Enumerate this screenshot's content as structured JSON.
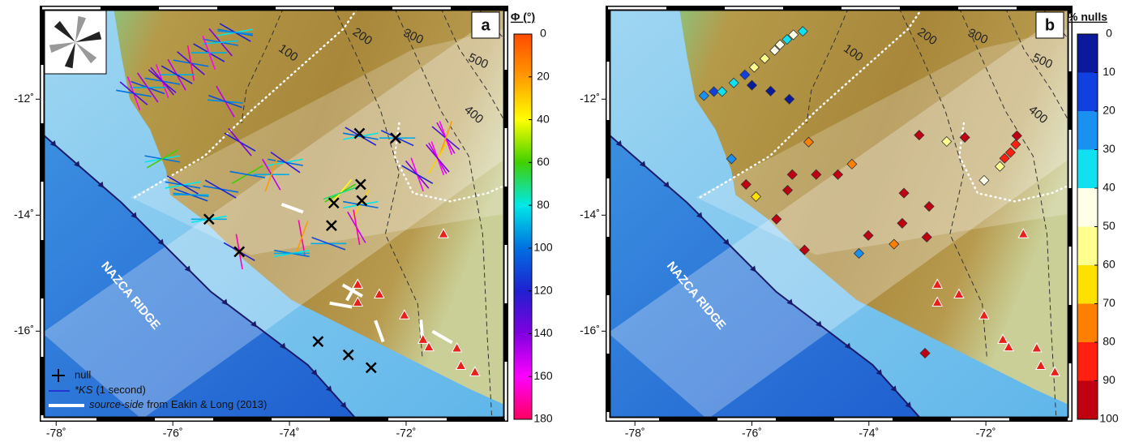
{
  "panels": [
    {
      "label": "a",
      "xlim": [
        -78.24,
        -70.29
      ],
      "ylim": [
        -17.52,
        -10.43
      ],
      "xticks": [
        {
          "value": -78,
          "label": "-78˚"
        },
        {
          "value": -76,
          "label": "-76˚"
        },
        {
          "value": -74,
          "label": "-74˚"
        },
        {
          "value": -72,
          "label": "-72˚"
        }
      ],
      "yticks": [
        {
          "value": -12,
          "label": "-12˚"
        },
        {
          "value": -14,
          "label": "-14˚"
        },
        {
          "value": -16,
          "label": "-16˚"
        }
      ],
      "contour_labels": [
        "100",
        "200",
        "300",
        "400",
        "500"
      ],
      "ridge_label": "NAZCA RIDGE",
      "colorbar": {
        "title": "Φ (°)",
        "lim": [
          0,
          180
        ],
        "ticks": [
          0,
          20,
          40,
          60,
          80,
          100,
          120,
          140,
          160,
          180
        ],
        "colors": [
          "#ff4a00",
          "#ff9a00",
          "#ffff00",
          "#40d000",
          "#00e8e8",
          "#0070e0",
          "#2020d0",
          "#8000e0",
          "#ff00ff",
          "#ff0060"
        ]
      },
      "legend": [
        {
          "text": "null"
        },
        {
          "parts": [
            "*KS",
            "(1 second)"
          ]
        },
        {
          "parts": [
            "source-side",
            "from Eakin & Long (2013)"
          ]
        }
      ],
      "splits": [
        {
          "lon": -74.93,
          "lat": -10.85,
          "phi": [
            80,
            100,
            120,
            95
          ]
        },
        {
          "lon": -75.18,
          "lat": -11.02,
          "phi": [
            100,
            140,
            85
          ]
        },
        {
          "lon": -75.38,
          "lat": -11.2,
          "phi": [
            120,
            90,
            160
          ]
        },
        {
          "lon": -75.69,
          "lat": -11.38,
          "phi": [
            100,
            130,
            170
          ]
        },
        {
          "lon": -75.93,
          "lat": -11.58,
          "phi": [
            90,
            150,
            120
          ]
        },
        {
          "lon": -76.18,
          "lat": -11.69,
          "phi": [
            100,
            160,
            130,
            140
          ]
        },
        {
          "lon": -76.43,
          "lat": -11.8,
          "phi": [
            110,
            90,
            145
          ]
        },
        {
          "lon": -76.67,
          "lat": -11.9,
          "phi": [
            160,
            100,
            130
          ]
        },
        {
          "lon": -75.1,
          "lat": -12.04,
          "phi": [
            95,
            150,
            110
          ]
        },
        {
          "lon": -74.85,
          "lat": -12.74,
          "phi": [
            120,
            140
          ]
        },
        {
          "lon": -76.18,
          "lat": -13.03,
          "phi": [
            80,
            100,
            60
          ]
        },
        {
          "lon": -74.07,
          "lat": -13.09,
          "phi": [
            80,
            100,
            125
          ]
        },
        {
          "lon": -74.31,
          "lat": -13.3,
          "phi": [
            90,
            150,
            20
          ]
        },
        {
          "lon": -74.72,
          "lat": -13.3,
          "phi": [
            60,
            100
          ]
        },
        {
          "lon": -75.83,
          "lat": -13.48,
          "phi": [
            100,
            80,
            120
          ]
        },
        {
          "lon": -75.69,
          "lat": -13.65,
          "phi": [
            90,
            110,
            95
          ]
        },
        {
          "lon": -75.18,
          "lat": -13.55,
          "phi": [
            100,
            120
          ]
        },
        {
          "lon": -75.38,
          "lat": -14.07,
          "phi": [
            90,
            80
          ]
        },
        {
          "lon": -72.78,
          "lat": -12.64,
          "phi": [
            80,
            100,
            120
          ]
        },
        {
          "lon": -72.15,
          "lat": -12.67,
          "phi": [
            90,
            115
          ]
        },
        {
          "lon": -71.32,
          "lat": -12.67,
          "phi": [
            150,
            160,
            130,
            20
          ]
        },
        {
          "lon": -71.46,
          "lat": -13.02,
          "phi": [
            150,
            30,
            160,
            140
          ]
        },
        {
          "lon": -71.81,
          "lat": -13.3,
          "phi": [
            140,
            160,
            120
          ]
        },
        {
          "lon": -73.13,
          "lat": -13.62,
          "phi": [
            60,
            40,
            70
          ]
        },
        {
          "lon": -72.78,
          "lat": -13.82,
          "phi": [
            80,
            30,
            100
          ]
        },
        {
          "lon": -73.79,
          "lat": -14.39,
          "phi": [
            170,
            20
          ]
        },
        {
          "lon": -73.33,
          "lat": -14.49,
          "phi": [
            90,
            110
          ]
        },
        {
          "lon": -73.96,
          "lat": -14.66,
          "phi": [
            100,
            80,
            90
          ]
        },
        {
          "lon": -74.86,
          "lat": -14.63,
          "phi": [
            170,
            120
          ]
        },
        {
          "lon": -72.85,
          "lat": -14.21,
          "phi": [
            150,
            170
          ]
        }
      ],
      "nulls": [
        {
          "lon": -73.51,
          "lat": -16.18
        },
        {
          "lon": -72.99,
          "lat": -16.41
        },
        {
          "lon": -72.6,
          "lat": -16.63
        },
        {
          "lon": -72.76,
          "lat": -13.75
        },
        {
          "lon": -72.8,
          "lat": -12.59
        },
        {
          "lon": -72.18,
          "lat": -12.67
        },
        {
          "lon": -72.78,
          "lat": -13.47
        },
        {
          "lon": -73.28,
          "lat": -14.18
        },
        {
          "lon": -73.24,
          "lat": -13.79
        },
        {
          "lon": -75.38,
          "lat": -14.07
        },
        {
          "lon": -74.86,
          "lat": -14.63
        }
      ],
      "source_side": [
        {
          "lon": -73.95,
          "lat": -13.88,
          "phi": 110
        },
        {
          "lon": -72.92,
          "lat": -15.3,
          "phi": 30
        },
        {
          "lon": -72.92,
          "lat": -15.3,
          "phi": 120
        },
        {
          "lon": -73.12,
          "lat": -15.55,
          "phi": 100
        },
        {
          "lon": -72.46,
          "lat": -16.0,
          "phi": 160
        },
        {
          "lon": -71.73,
          "lat": -16.0,
          "phi": 175
        },
        {
          "lon": -71.38,
          "lat": -16.1,
          "phi": 120
        }
      ],
      "volcanoes": [
        {
          "lon": -71.36,
          "lat": -14.32
        },
        {
          "lon": -72.83,
          "lat": -15.19
        },
        {
          "lon": -72.83,
          "lat": -15.5
        },
        {
          "lon": -72.46,
          "lat": -15.36
        },
        {
          "lon": -72.03,
          "lat": -15.72
        },
        {
          "lon": -71.71,
          "lat": -16.14
        },
        {
          "lon": -71.61,
          "lat": -16.27
        },
        {
          "lon": -71.13,
          "lat": -16.29
        },
        {
          "lon": -71.06,
          "lat": -16.59
        },
        {
          "lon": -70.82,
          "lat": -16.7
        }
      ]
    },
    {
      "label": "b",
      "xlim": [
        -78.46,
        -70.56
      ],
      "ylim": [
        -17.52,
        -10.43
      ],
      "xticks": [
        {
          "value": -78,
          "label": "-78˚"
        },
        {
          "value": -76,
          "label": "-76˚"
        },
        {
          "value": -74,
          "label": "-74˚"
        },
        {
          "value": -72,
          "label": "-72˚"
        }
      ],
      "yticks": [
        {
          "value": -12,
          "label": "-12˚"
        },
        {
          "value": -14,
          "label": "-14˚"
        },
        {
          "value": -16,
          "label": "-16˚"
        }
      ],
      "contour_labels": [
        "100",
        "200",
        "300",
        "400",
        "500"
      ],
      "ridge_label": "NAZCA RIDGE",
      "colorbar": {
        "title": "% nulls",
        "lim": [
          0,
          100
        ],
        "ticks": [
          0,
          10,
          20,
          30,
          40,
          50,
          60,
          70,
          80,
          90,
          100
        ],
        "colors": [
          "#0a1a9a",
          "#1040e0",
          "#1a90f0",
          "#10e0f0",
          "#ffffe8",
          "#ffff90",
          "#ffe000",
          "#ff8000",
          "#ff2010",
          "#c00010"
        ]
      },
      "stations": [
        {
          "lon": -76.82,
          "lat": -11.94,
          "value": 20
        },
        {
          "lon": -76.65,
          "lat": -11.87,
          "value": 10
        },
        {
          "lon": -76.51,
          "lat": -11.87,
          "value": 30
        },
        {
          "lon": -76.31,
          "lat": -11.72,
          "value": 30
        },
        {
          "lon": -76.12,
          "lat": -11.58,
          "value": 10
        },
        {
          "lon": -75.96,
          "lat": -11.45,
          "value": 50
        },
        {
          "lon": -75.78,
          "lat": -11.3,
          "value": 50
        },
        {
          "lon": -75.61,
          "lat": -11.16,
          "value": 40
        },
        {
          "lon": -75.52,
          "lat": -11.06,
          "value": 40
        },
        {
          "lon": -75.4,
          "lat": -10.97,
          "value": 30
        },
        {
          "lon": -75.29,
          "lat": -10.89,
          "value": 40
        },
        {
          "lon": -75.13,
          "lat": -10.83,
          "value": 30
        },
        {
          "lon": -76.0,
          "lat": -11.76,
          "value": 0
        },
        {
          "lon": -75.68,
          "lat": -11.86,
          "value": 0
        },
        {
          "lon": -75.36,
          "lat": -12.0,
          "value": 0
        },
        {
          "lon": -76.35,
          "lat": -13.03,
          "value": 20
        },
        {
          "lon": -76.1,
          "lat": -13.47,
          "value": 90
        },
        {
          "lon": -75.93,
          "lat": -13.68,
          "value": 60
        },
        {
          "lon": -75.03,
          "lat": -12.74,
          "value": 70
        },
        {
          "lon": -75.31,
          "lat": -13.3,
          "value": 100
        },
        {
          "lon": -74.9,
          "lat": -13.3,
          "value": 90
        },
        {
          "lon": -74.53,
          "lat": -13.3,
          "value": 90
        },
        {
          "lon": -74.29,
          "lat": -13.12,
          "value": 70
        },
        {
          "lon": -75.39,
          "lat": -13.57,
          "value": 100
        },
        {
          "lon": -75.58,
          "lat": -14.07,
          "value": 100
        },
        {
          "lon": -75.1,
          "lat": -14.6,
          "value": 90
        },
        {
          "lon": -74.01,
          "lat": -14.35,
          "value": 100
        },
        {
          "lon": -74.17,
          "lat": -14.66,
          "value": 20
        },
        {
          "lon": -73.57,
          "lat": -14.5,
          "value": 70
        },
        {
          "lon": -73.43,
          "lat": -14.14,
          "value": 100
        },
        {
          "lon": -73.4,
          "lat": -13.62,
          "value": 90
        },
        {
          "lon": -72.97,
          "lat": -13.85,
          "value": 90
        },
        {
          "lon": -73.01,
          "lat": -14.38,
          "value": 90
        },
        {
          "lon": -73.14,
          "lat": -12.62,
          "value": 90
        },
        {
          "lon": -72.67,
          "lat": -12.73,
          "value": 50
        },
        {
          "lon": -72.36,
          "lat": -12.66,
          "value": 90
        },
        {
          "lon": -73.04,
          "lat": -16.38,
          "value": 100
        },
        {
          "lon": -71.47,
          "lat": -12.63,
          "value": 90
        },
        {
          "lon": -71.49,
          "lat": -12.78,
          "value": 80
        },
        {
          "lon": -71.58,
          "lat": -12.92,
          "value": 80
        },
        {
          "lon": -71.68,
          "lat": -13.02,
          "value": 80
        },
        {
          "lon": -71.76,
          "lat": -13.16,
          "value": 50
        },
        {
          "lon": -72.03,
          "lat": -13.4,
          "value": 40
        }
      ],
      "volcanoes": [
        {
          "lon": -71.36,
          "lat": -14.32
        },
        {
          "lon": -72.83,
          "lat": -15.19
        },
        {
          "lon": -72.83,
          "lat": -15.5
        },
        {
          "lon": -72.46,
          "lat": -15.36
        },
        {
          "lon": -72.03,
          "lat": -15.72
        },
        {
          "lon": -71.71,
          "lat": -16.14
        },
        {
          "lon": -71.61,
          "lat": -16.27
        },
        {
          "lon": -71.13,
          "lat": -16.29
        },
        {
          "lon": -71.06,
          "lat": -16.59
        },
        {
          "lon": -70.82,
          "lat": -16.7
        }
      ]
    }
  ]
}
